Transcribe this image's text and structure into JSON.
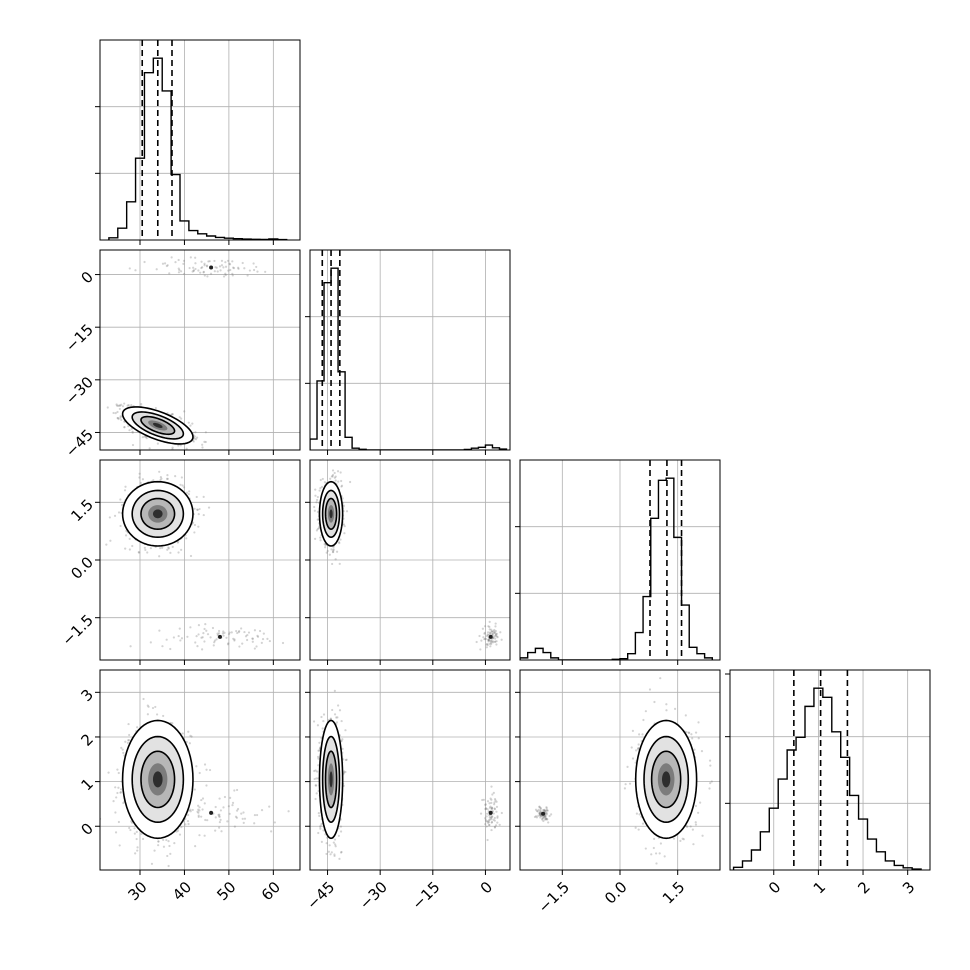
{
  "chart_data": {
    "type": "corner",
    "title": "",
    "parameters": [
      "",
      "",
      "",
      ""
    ],
    "grid": true,
    "legend": "none",
    "colors": {
      "ink": "#000000",
      "grid": "#b0b0b0",
      "scatter": "#808080"
    },
    "ranges": [
      [
        21,
        66
      ],
      [
        -50,
        7
      ],
      [
        -2.6,
        2.6
      ],
      [
        -0.98,
        3.5
      ]
    ],
    "ticks": [
      [
        30,
        40,
        50,
        60
      ],
      [
        -45,
        -30,
        -15,
        0
      ],
      [
        -1.5,
        0.0,
        1.5
      ],
      [
        0,
        1,
        2,
        3
      ]
    ],
    "tick_labels": [
      [
        "30",
        "40",
        "50",
        "60"
      ],
      [
        "−45",
        "−30",
        "−15",
        "0"
      ],
      [
        "−1.5",
        "0.0",
        "1.5"
      ],
      [
        "0",
        "1",
        "2",
        "3"
      ]
    ],
    "quantiles": [
      [
        30.5,
        34.0,
        37.2
      ],
      [
        -46.5,
        -44.0,
        -41.5
      ],
      [
        0.78,
        1.22,
        1.6
      ],
      [
        0.45,
        1.05,
        1.65
      ]
    ],
    "histograms": [
      {
        "param": 0,
        "bin_edges": [
          23,
          25,
          27,
          29,
          31,
          33,
          35,
          37,
          39,
          41,
          43,
          45,
          47,
          49,
          51,
          53,
          55,
          57,
          59,
          61,
          63
        ],
        "counts": [
          0.012,
          0.065,
          0.21,
          0.45,
          0.92,
          1.0,
          0.82,
          0.36,
          0.105,
          0.052,
          0.034,
          0.022,
          0.014,
          0.01,
          0.007,
          0.005,
          0.004,
          0.003,
          0.006,
          0.002
        ]
      },
      {
        "param": 1,
        "bin_edges": [
          -50,
          -48,
          -46,
          -44,
          -42,
          -40,
          -38,
          -36,
          -34,
          -32,
          -30,
          -28,
          -26,
          -24,
          -22,
          -20,
          -18,
          -16,
          -14,
          -12,
          -10,
          -8,
          -6,
          -4,
          -2,
          0,
          2,
          4,
          6
        ],
        "counts": [
          0.06,
          0.38,
          0.92,
          1.0,
          0.43,
          0.07,
          0.01,
          0.004,
          0,
          0,
          0,
          0,
          0,
          0,
          0,
          0,
          0,
          0,
          0,
          0,
          0,
          0,
          0.003,
          0.01,
          0.015,
          0.027,
          0.012,
          0.005
        ]
      },
      {
        "param": 2,
        "bin_edges": [
          -2.6,
          -2.4,
          -2.2,
          -2.0,
          -1.8,
          -1.6,
          -1.4,
          -1.2,
          -1.0,
          -0.8,
          -0.6,
          -0.4,
          -0.2,
          0.0,
          0.2,
          0.4,
          0.6,
          0.8,
          1.0,
          1.2,
          1.4,
          1.6,
          1.8,
          2.0,
          2.2,
          2.4
        ],
        "counts": [
          0.01,
          0.035,
          0.055,
          0.035,
          0.01,
          0,
          0,
          0,
          0,
          0,
          0,
          0,
          0.003,
          0.006,
          0.03,
          0.13,
          0.3,
          0.67,
          0.85,
          0.86,
          0.58,
          0.26,
          0.06,
          0.03,
          0.01
        ]
      },
      {
        "param": 3,
        "bin_edges": [
          -0.9,
          -0.7,
          -0.5,
          -0.3,
          -0.1,
          0.1,
          0.3,
          0.5,
          0.7,
          0.9,
          1.1,
          1.3,
          1.5,
          1.7,
          1.9,
          2.1,
          2.3,
          2.5,
          2.7,
          2.9,
          3.1,
          3.3
        ],
        "counts": [
          0.015,
          0.05,
          0.11,
          0.21,
          0.34,
          0.5,
          0.66,
          0.73,
          0.9,
          1.0,
          0.95,
          0.76,
          0.62,
          0.41,
          0.28,
          0.17,
          0.1,
          0.05,
          0.025,
          0.012,
          0.005
        ]
      }
    ],
    "joint": [
      {
        "row": 1,
        "col": 0,
        "modes": [
          {
            "mx": 34,
            "my": -43,
            "sx": 3.6,
            "sy": 2.4,
            "rho": -0.62,
            "n": 1000
          },
          {
            "mx": 46,
            "my": 2,
            "sx": 7.5,
            "sy": 1.4,
            "rho": 0,
            "n": 80
          }
        ]
      },
      {
        "row": 2,
        "col": 0,
        "modes": [
          {
            "mx": 34,
            "my": 1.2,
            "sx": 3.6,
            "sy": 0.38,
            "rho": 0,
            "n": 1000
          },
          {
            "mx": 48,
            "my": -2.0,
            "sx": 7.5,
            "sy": 0.14,
            "rho": 0,
            "n": 80
          }
        ]
      },
      {
        "row": 2,
        "col": 1,
        "modes": [
          {
            "mx": -44,
            "my": 1.2,
            "sx": 1.5,
            "sy": 0.38,
            "rho": 0,
            "n": 1000
          },
          {
            "mx": 1.5,
            "my": -2.0,
            "sx": 1.2,
            "sy": 0.14,
            "rho": 0,
            "n": 80
          }
        ]
      },
      {
        "row": 3,
        "col": 0,
        "modes": [
          {
            "mx": 34,
            "my": 1.05,
            "sx": 3.6,
            "sy": 0.6,
            "rho": 0,
            "n": 1000
          },
          {
            "mx": 46,
            "my": 0.3,
            "sx": 7.5,
            "sy": 0.2,
            "rho": 0,
            "n": 80
          }
        ]
      },
      {
        "row": 3,
        "col": 1,
        "modes": [
          {
            "mx": -44,
            "my": 1.05,
            "sx": 1.5,
            "sy": 0.6,
            "rho": 0,
            "n": 1000
          },
          {
            "mx": 1.5,
            "my": 0.3,
            "sx": 1.2,
            "sy": 0.2,
            "rho": 0,
            "n": 80
          }
        ]
      },
      {
        "row": 3,
        "col": 2,
        "modes": [
          {
            "mx": 1.2,
            "my": 1.05,
            "sx": 0.36,
            "sy": 0.6,
            "rho": 0,
            "n": 1000
          },
          {
            "mx": -2.0,
            "my": 0.28,
            "sx": 0.08,
            "sy": 0.08,
            "rho": 0,
            "n": 80
          }
        ]
      }
    ]
  }
}
